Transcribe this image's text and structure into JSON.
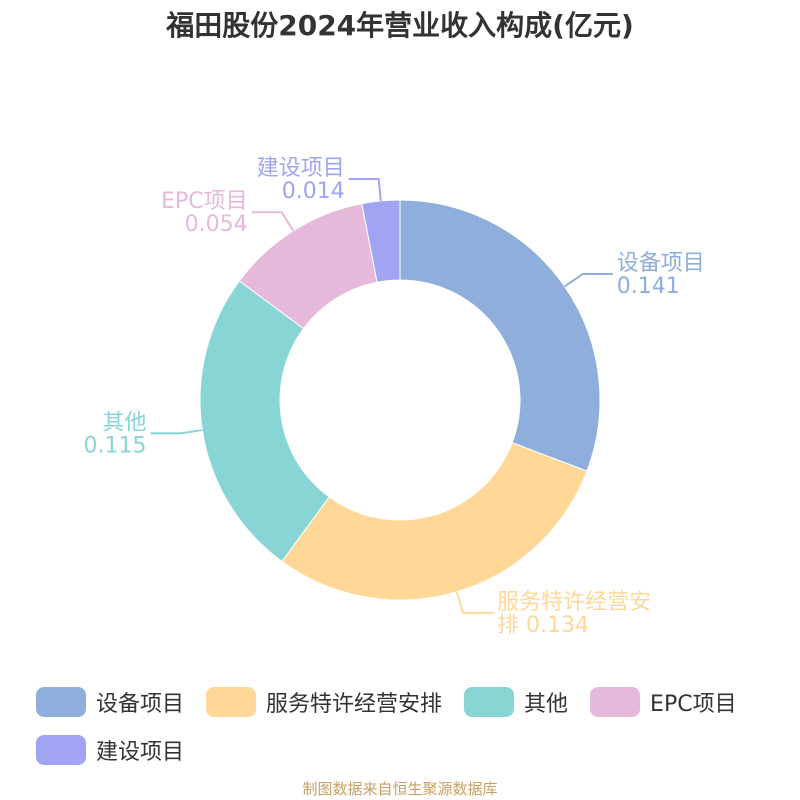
{
  "title": "福田股份2024年营业收入构成(亿元)",
  "source": "制图数据来自恒生聚源数据库",
  "chart_data": {
    "type": "pie",
    "donut": true,
    "title": "福田股份2024年营业收入构成(亿元)",
    "legend_position": "bottom",
    "slices": [
      {
        "name": "设备项目",
        "value": 0.141,
        "label": "0.141",
        "color": "#8eaedb"
      },
      {
        "name": "服务特许经营安排",
        "value": 0.134,
        "label": "0.134",
        "color": "#ffd898"
      },
      {
        "name": "其他",
        "value": 0.115,
        "label": "0.115",
        "color": "#88d5d6"
      },
      {
        "name": "EPC项目",
        "value": 0.054,
        "label": "0.054",
        "color": "#e6b8d9"
      },
      {
        "name": "建设项目",
        "value": 0.014,
        "label": "0.014",
        "color": "#a0a4f2"
      }
    ]
  }
}
